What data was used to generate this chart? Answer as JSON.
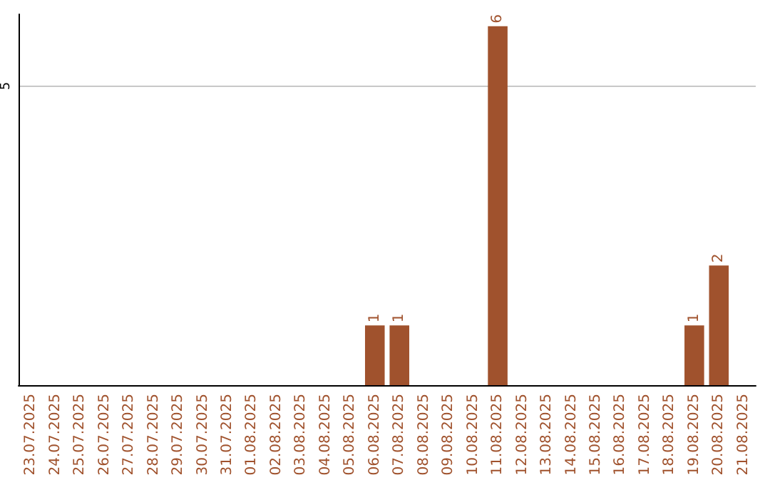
{
  "chart_data": {
    "type": "bar",
    "categories": [
      "23.07.2025",
      "24.07.2025",
      "25.07.2025",
      "26.07.2025",
      "27.07.2025",
      "28.07.2025",
      "29.07.2025",
      "30.07.2025",
      "31.07.2025",
      "01.08.2025",
      "02.08.2025",
      "03.08.2025",
      "04.08.2025",
      "05.08.2025",
      "06.08.2025",
      "07.08.2025",
      "08.08.2025",
      "09.08.2025",
      "10.08.2025",
      "11.08.2025",
      "12.08.2025",
      "13.08.2025",
      "14.08.2025",
      "15.08.2025",
      "16.08.2025",
      "17.08.2025",
      "18.08.2025",
      "19.08.2025",
      "20.08.2025",
      "21.08.2025"
    ],
    "values": [
      null,
      null,
      null,
      null,
      null,
      null,
      null,
      null,
      null,
      null,
      null,
      null,
      null,
      null,
      1,
      1,
      null,
      null,
      null,
      6,
      null,
      null,
      null,
      null,
      null,
      null,
      null,
      1,
      2,
      null
    ],
    "color": "#a0522d",
    "ylim": [
      0,
      6.2
    ],
    "yticks": [
      5
    ],
    "grid": "y",
    "data_labels": true
  }
}
